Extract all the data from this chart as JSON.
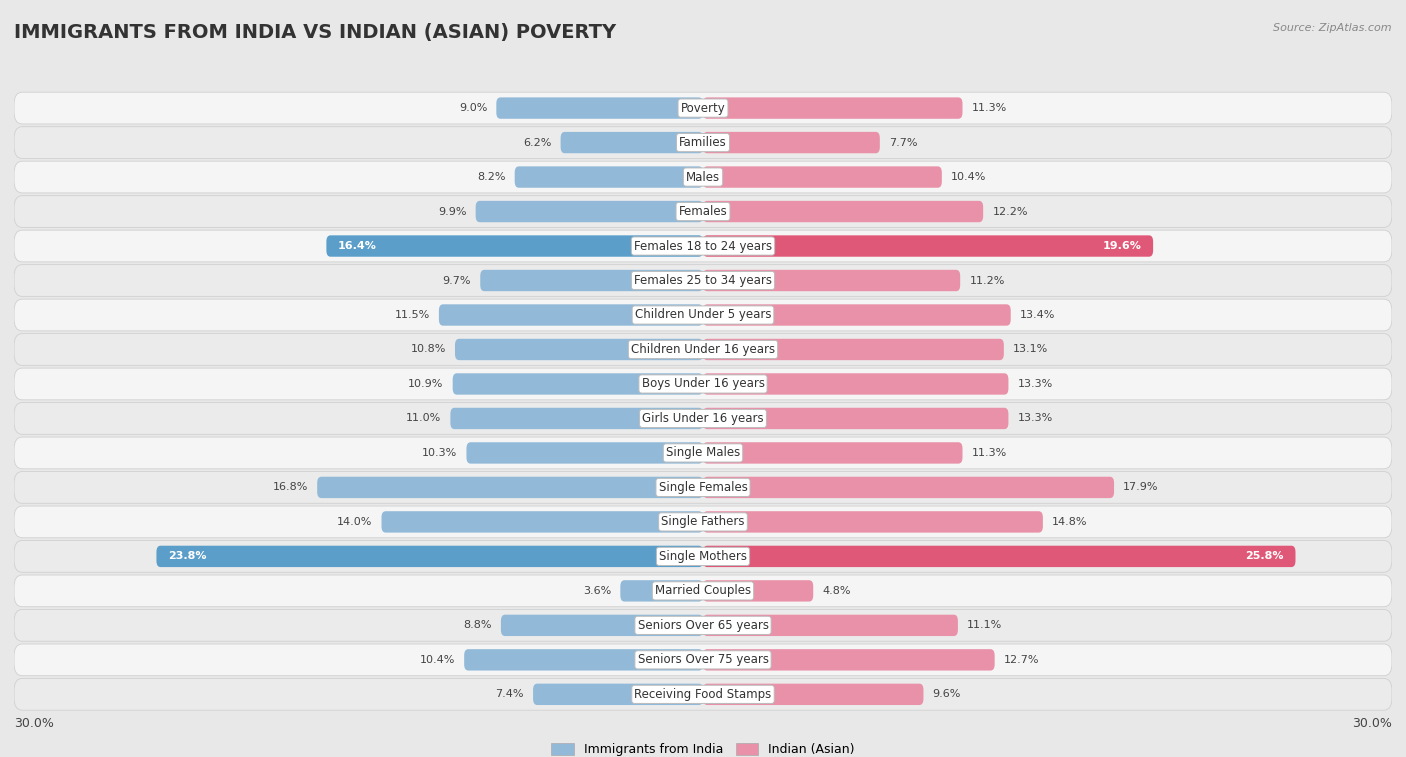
{
  "title": "IMMIGRANTS FROM INDIA VS INDIAN (ASIAN) POVERTY",
  "source": "Source: ZipAtlas.com",
  "categories": [
    "Poverty",
    "Families",
    "Males",
    "Females",
    "Females 18 to 24 years",
    "Females 25 to 34 years",
    "Children Under 5 years",
    "Children Under 16 years",
    "Boys Under 16 years",
    "Girls Under 16 years",
    "Single Males",
    "Single Females",
    "Single Fathers",
    "Single Mothers",
    "Married Couples",
    "Seniors Over 65 years",
    "Seniors Over 75 years",
    "Receiving Food Stamps"
  ],
  "left_values": [
    9.0,
    6.2,
    8.2,
    9.9,
    16.4,
    9.7,
    11.5,
    10.8,
    10.9,
    11.0,
    10.3,
    16.8,
    14.0,
    23.8,
    3.6,
    8.8,
    10.4,
    7.4
  ],
  "right_values": [
    11.3,
    7.7,
    10.4,
    12.2,
    19.6,
    11.2,
    13.4,
    13.1,
    13.3,
    13.3,
    11.3,
    17.9,
    14.8,
    25.8,
    4.8,
    11.1,
    12.7,
    9.6
  ],
  "left_color": "#92bad8",
  "right_color": "#e991a8",
  "highlight_left_color": "#5b9ec9",
  "highlight_right_color": "#e05878",
  "background_color": "#e8e8e8",
  "row_odd_color": "#f5f5f5",
  "row_even_color": "#ebebeb",
  "row_border_color": "#d0d0d0",
  "axis_max": 30.0,
  "legend_left": "Immigrants from India",
  "legend_right": "Indian (Asian)",
  "title_fontsize": 14,
  "label_fontsize": 8.5,
  "value_fontsize": 8,
  "highlighted_rows": [
    4,
    13
  ]
}
